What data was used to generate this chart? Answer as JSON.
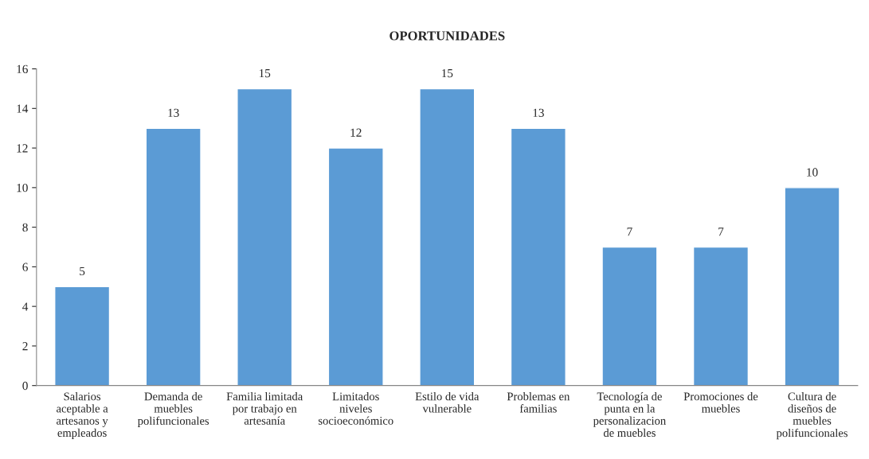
{
  "chart_data": {
    "type": "bar",
    "title": "OPORTUNIDADES",
    "categories": [
      "Salarios\naceptable a\nartesanos y\nempleados",
      "Demanda de\nmuebles\npolifuncionales",
      "Familia limitada\npor trabajo en\nartesanía",
      "Limitados\nniveles\nsocioeconómico",
      "Estilo de vida\nvulnerable",
      "Problemas en\nfamilias",
      "Tecnología de\npunta en la\npersonalizacion\nde muebles",
      "Promociones de\nmuebles",
      "Cultura de\ndiseños de\nmuebles\npolifuncionales"
    ],
    "values": [
      5,
      13,
      15,
      12,
      15,
      13,
      7,
      7,
      10
    ],
    "color": "#5b9bd5",
    "ylim": [
      0,
      16
    ],
    "yticks": [
      0,
      2,
      4,
      6,
      8,
      10,
      12,
      14,
      16
    ],
    "data_labels": true
  }
}
